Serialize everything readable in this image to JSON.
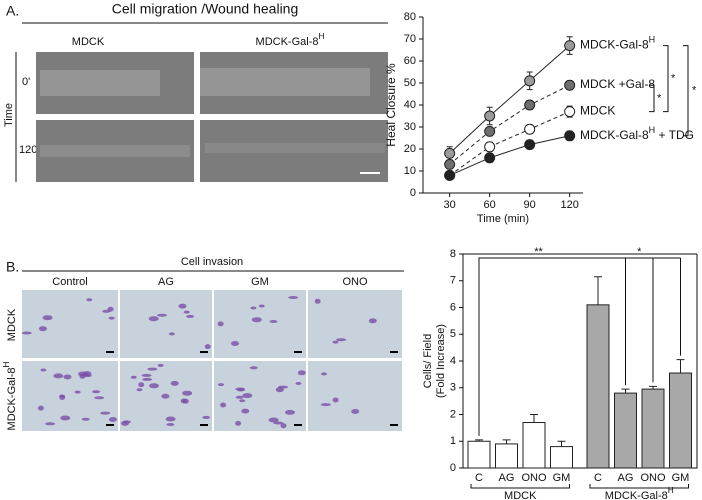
{
  "panel_a": {
    "label": "A.",
    "title": "Cell migration /Wound healing",
    "columns": [
      {
        "text": "MDCK"
      },
      {
        "text": "MDCK-Gal-8",
        "sup": "H"
      }
    ],
    "row_axis": "Time",
    "rows": [
      "0'",
      "120'"
    ]
  },
  "panel_b": {
    "label": "B.",
    "title": "Cell invasion",
    "columns": [
      "Control",
      "AG",
      "GM",
      "ONO"
    ],
    "rows": [
      {
        "text": "MDCK"
      },
      {
        "text": "MDCK-Gal-8",
        "sup": "H"
      }
    ]
  },
  "chart_data": [
    {
      "type": "line",
      "xlabel": "Time (min)",
      "ylabel": "Heal Closure %",
      "x": [
        30,
        60,
        90,
        120
      ],
      "xlim": [
        10,
        130
      ],
      "xticks": [
        30,
        60,
        90,
        120
      ],
      "ylim": [
        0,
        80
      ],
      "yticks": [
        0,
        10,
        20,
        30,
        40,
        50,
        60,
        70,
        80
      ],
      "series": [
        {
          "name": "MDCK-Gal-8",
          "name_sup": "H",
          "color": "#9a9a9a",
          "dashed": false,
          "values": [
            18,
            35,
            51,
            67
          ],
          "errors": [
            3,
            4,
            4,
            4
          ]
        },
        {
          "name": "MDCK +Gal-8",
          "color": "#6e6e6e",
          "dashed": true,
          "values": [
            13,
            28,
            40,
            49
          ],
          "errors": [
            2,
            2,
            2,
            2
          ]
        },
        {
          "name": "MDCK",
          "color": "#ffffff",
          "dashed": true,
          "values": [
            8,
            21,
            29,
            37
          ],
          "errors": [
            1,
            2,
            2,
            2.5
          ]
        },
        {
          "name": "MDCK-Gal-8",
          "name_sup": "H",
          "name_suffix": " + TDG",
          "color": "#222222",
          "dashed": false,
          "values": [
            8,
            16,
            22,
            26
          ],
          "errors": [
            1,
            2,
            2,
            2
          ]
        }
      ],
      "annotations": [
        "*",
        "*",
        "*"
      ]
    },
    {
      "type": "bar",
      "ylabel": [
        "Cells/ Field",
        "(Fold Increase)"
      ],
      "categories": [
        "C",
        "AG",
        "ONO",
        "GM",
        "C",
        "AG",
        "ONO",
        "GM"
      ],
      "groups": [
        {
          "text": "MDCK"
        },
        {
          "text": "MDCK-Gal-8",
          "sup": "H"
        }
      ],
      "values": [
        1.0,
        0.9,
        1.7,
        0.8,
        6.1,
        2.8,
        2.95,
        3.55
      ],
      "errors": [
        0.05,
        0.15,
        0.3,
        0.2,
        1.05,
        0.15,
        0.1,
        0.5
      ],
      "colors": [
        "#ffffff",
        "#ffffff",
        "#ffffff",
        "#ffffff",
        "#a8a8a8",
        "#a8a8a8",
        "#a8a8a8",
        "#a8a8a8"
      ],
      "ylim": [
        0,
        8
      ],
      "yticks": [
        0,
        1,
        2,
        3,
        4,
        5,
        6,
        7,
        8
      ],
      "annotations": [
        "**",
        "*"
      ]
    }
  ]
}
